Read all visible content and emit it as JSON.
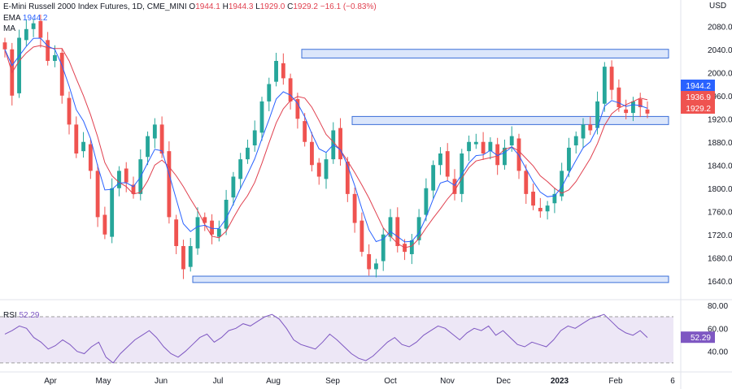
{
  "header": {
    "title": "E-Mini Russell 2000 Index Futures, 1D, CME_MINI",
    "o_label": "O",
    "o": "1944.1",
    "h_label": "H",
    "h": "1944.3",
    "l_label": "L",
    "l": "1929.0",
    "c_label": "C",
    "c": "1929.2",
    "change": "−16.1 (−0.83%)",
    "ema_label": "EMA",
    "ema_value": "1944.2",
    "ma_label": "MA",
    "ma_value": "1936.9"
  },
  "colors": {
    "up": "#26a69a",
    "down": "#ef5350",
    "ema": "#2962ff",
    "ma": "#e0404f",
    "rsi_line": "#7e57c2",
    "rsi_band": "#ede7f6",
    "zone_fill": "#dbe6fb",
    "zone_stroke": "#3b6fd8"
  },
  "chart_data": [
    {
      "type": "candlestick",
      "title": "E-Mini Russell 2000 Index Futures, 1D, CME_MINI",
      "y_axis_label": "USD",
      "ylim": [
        1620,
        2100
      ],
      "y_ticks": [
        2080,
        2040,
        2000,
        1960,
        1920,
        1880,
        1840,
        1800,
        1760,
        1720,
        1680,
        1640
      ],
      "x_ticks": [
        "Apr",
        "May",
        "Jun",
        "Jul",
        "Aug",
        "Sep",
        "Oct",
        "Nov",
        "Dec",
        "2023",
        "Feb",
        "6"
      ],
      "grid": false,
      "price_labels": [
        {
          "name": "EMA",
          "value": 1944.2,
          "text": "1944.2"
        },
        {
          "name": "MA",
          "value": 1936.9,
          "text": "1936.9"
        },
        {
          "name": "Last",
          "value": 1929.2,
          "text": "1929.2"
        }
      ],
      "zones": [
        {
          "from_x": "Aug",
          "to_x": "end",
          "low": 2025,
          "high": 2040
        },
        {
          "from_x": "Sep",
          "to_x": "end",
          "low": 1910,
          "high": 1924
        },
        {
          "from_x": "Jun",
          "to_x": "end",
          "low": 1637,
          "high": 1648
        }
      ],
      "close_path": [
        [
          "Mar",
          2040
        ],
        [
          "Mar",
          1960
        ],
        [
          "Mar",
          2060
        ],
        [
          "Mar",
          2075
        ],
        [
          "Apr",
          2085
        ],
        [
          "Apr",
          2060
        ],
        [
          "Apr",
          2020
        ],
        [
          "Apr",
          2030
        ],
        [
          "Apr",
          1960
        ],
        [
          "Apr",
          1910
        ],
        [
          "May",
          1860
        ],
        [
          "May",
          1880
        ],
        [
          "May",
          1830
        ],
        [
          "May",
          1750
        ],
        [
          "May",
          1720
        ],
        [
          "May",
          1800
        ],
        [
          "May",
          1830
        ],
        [
          "May",
          1810
        ],
        [
          "May",
          1790
        ],
        [
          "Jun",
          1850
        ],
        [
          "Jun",
          1890
        ],
        [
          "Jun",
          1910
        ],
        [
          "Jun",
          1860
        ],
        [
          "Jun",
          1750
        ],
        [
          "Jun",
          1700
        ],
        [
          "Jun",
          1660
        ],
        [
          "Jun",
          1700
        ],
        [
          "Jul",
          1750
        ],
        [
          "Jul",
          1740
        ],
        [
          "Jul",
          1720
        ],
        [
          "Jul",
          1730
        ],
        [
          "Jul",
          1780
        ],
        [
          "Jul",
          1820
        ],
        [
          "Jul",
          1850
        ],
        [
          "Aug",
          1870
        ],
        [
          "Aug",
          1900
        ],
        [
          "Aug",
          1950
        ],
        [
          "Aug",
          1980
        ],
        [
          "Aug",
          2020
        ],
        [
          "Aug",
          1990
        ],
        [
          "Aug",
          1950
        ],
        [
          "Aug",
          1920
        ],
        [
          "Sep",
          1880
        ],
        [
          "Sep",
          1840
        ],
        [
          "Sep",
          1820
        ],
        [
          "Sep",
          1850
        ],
        [
          "Sep",
          1900
        ],
        [
          "Sep",
          1850
        ],
        [
          "Sep",
          1790
        ],
        [
          "Sep",
          1740
        ],
        [
          "Oct",
          1690
        ],
        [
          "Oct",
          1660
        ],
        [
          "Oct",
          1670
        ],
        [
          "Oct",
          1720
        ],
        [
          "Oct",
          1750
        ],
        [
          "Oct",
          1700
        ],
        [
          "Oct",
          1690
        ],
        [
          "Oct",
          1710
        ],
        [
          "Oct",
          1750
        ],
        [
          "Nov",
          1800
        ],
        [
          "Nov",
          1840
        ],
        [
          "Nov",
          1860
        ],
        [
          "Nov",
          1820
        ],
        [
          "Nov",
          1790
        ],
        [
          "Nov",
          1860
        ],
        [
          "Nov",
          1880
        ],
        [
          "Nov",
          1880
        ],
        [
          "Dec",
          1860
        ],
        [
          "Dec",
          1880
        ],
        [
          "Dec",
          1840
        ],
        [
          "Dec",
          1870
        ],
        [
          "Dec",
          1890
        ],
        [
          "Dec",
          1830
        ],
        [
          "Dec",
          1790
        ],
        [
          "Dec",
          1770
        ],
        [
          "Dec",
          1760
        ],
        [
          "Dec",
          1770
        ],
        [
          "2023",
          1790
        ],
        [
          "2023",
          1830
        ],
        [
          "2023",
          1870
        ],
        [
          "2023",
          1890
        ],
        [
          "2023",
          1910
        ],
        [
          "2023",
          1900
        ],
        [
          "2023",
          1950
        ],
        [
          "Feb",
          2010
        ],
        [
          "Feb",
          1970
        ],
        [
          "Feb",
          1940
        ],
        [
          "Feb",
          1930
        ],
        [
          "Feb",
          1950
        ],
        [
          "Feb",
          1940
        ],
        [
          "Feb",
          1929
        ]
      ]
    },
    {
      "type": "line",
      "title": "RSI",
      "series": [
        {
          "name": "RSI",
          "last_value": 52.29,
          "last_text": "52.29"
        }
      ],
      "ylim": [
        25,
        82
      ],
      "y_ticks": [
        80,
        60,
        40
      ],
      "bands": [
        30,
        70
      ],
      "values": [
        55,
        58,
        62,
        60,
        52,
        48,
        42,
        45,
        50,
        46,
        40,
        38,
        44,
        48,
        35,
        30,
        38,
        44,
        50,
        54,
        58,
        52,
        44,
        38,
        35,
        40,
        46,
        52,
        55,
        48,
        52,
        58,
        60,
        64,
        62,
        66,
        70,
        72,
        68,
        60,
        50,
        46,
        44,
        42,
        48,
        55,
        50,
        44,
        38,
        34,
        32,
        36,
        42,
        48,
        52,
        46,
        44,
        48,
        54,
        58,
        62,
        60,
        55,
        50,
        56,
        60,
        58,
        62,
        54,
        58,
        52,
        46,
        44,
        48,
        46,
        44,
        50,
        58,
        62,
        60,
        64,
        68,
        70,
        72,
        66,
        60,
        56,
        54,
        58,
        52
      ]
    }
  ]
}
